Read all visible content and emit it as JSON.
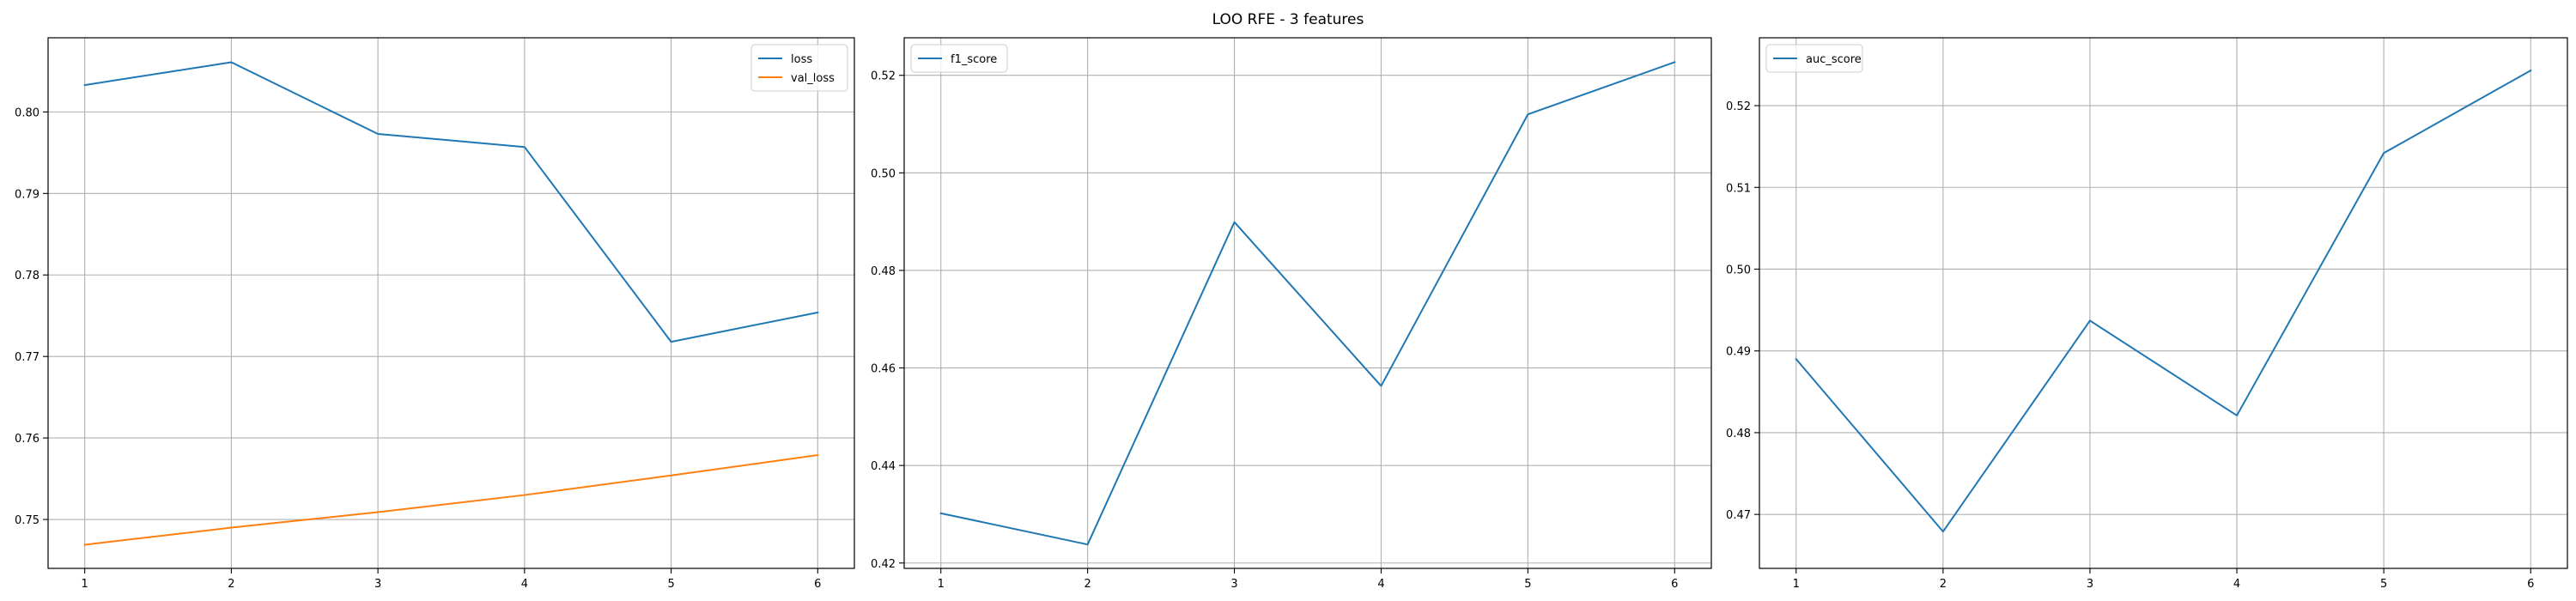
{
  "figure": {
    "title": "LOO RFE - 3 features"
  },
  "colors": {
    "blue": "#1f77b4",
    "orange": "#ff7f0e",
    "grid": "#b0b0b0",
    "axis": "#000000"
  },
  "chart_data": [
    {
      "type": "line",
      "x": [
        1,
        2,
        3,
        4,
        5,
        6
      ],
      "series": [
        {
          "name": "loss",
          "values": [
            0.8033,
            0.8061,
            0.7973,
            0.7957,
            0.7718,
            0.7754
          ],
          "color": "#1f77b4"
        },
        {
          "name": "val_loss",
          "values": [
            0.7469,
            0.749,
            0.7509,
            0.753,
            0.7554,
            0.7579
          ],
          "color": "#ff7f0e"
        }
      ],
      "xticks": [
        1,
        2,
        3,
        4,
        5,
        6
      ],
      "yticks": [
        0.75,
        0.76,
        0.77,
        0.78,
        0.79,
        0.8
      ],
      "ytick_labels": [
        "0.75",
        "0.76",
        "0.77",
        "0.78",
        "0.79",
        "0.80"
      ],
      "xlim": [
        0.75,
        6.25
      ],
      "ylim": [
        0.744,
        0.8091
      ],
      "grid": true,
      "legend": "upper right",
      "title": "",
      "xlabel": "",
      "ylabel": ""
    },
    {
      "type": "line",
      "x": [
        1,
        2,
        3,
        4,
        5,
        6
      ],
      "series": [
        {
          "name": "f1_score",
          "values": [
            0.4302,
            0.4238,
            0.4899,
            0.4563,
            0.512,
            0.5227
          ],
          "color": "#1f77b4"
        }
      ],
      "xticks": [
        1,
        2,
        3,
        4,
        5,
        6
      ],
      "yticks": [
        0.42,
        0.44,
        0.46,
        0.48,
        0.5,
        0.52
      ],
      "ytick_labels": [
        "0.42",
        "0.44",
        "0.46",
        "0.48",
        "0.50",
        "0.52"
      ],
      "xlim": [
        0.75,
        6.25
      ],
      "ylim": [
        0.4189,
        0.5277
      ],
      "grid": true,
      "legend": "upper left",
      "title": "",
      "xlabel": "",
      "ylabel": ""
    },
    {
      "type": "line",
      "x": [
        1,
        2,
        3,
        4,
        5,
        6
      ],
      "series": [
        {
          "name": "auc_score",
          "values": [
            0.489,
            0.4679,
            0.4937,
            0.4821,
            0.5142,
            0.5243
          ],
          "color": "#1f77b4"
        }
      ],
      "xticks": [
        1,
        2,
        3,
        4,
        5,
        6
      ],
      "yticks": [
        0.47,
        0.48,
        0.49,
        0.5,
        0.51,
        0.52
      ],
      "ytick_labels": [
        "0.47",
        "0.48",
        "0.49",
        "0.50",
        "0.51",
        "0.52"
      ],
      "xlim": [
        0.75,
        6.25
      ],
      "ylim": [
        0.4634,
        0.5283
      ],
      "grid": true,
      "legend": "upper left",
      "title": "",
      "xlabel": "",
      "ylabel": ""
    }
  ]
}
